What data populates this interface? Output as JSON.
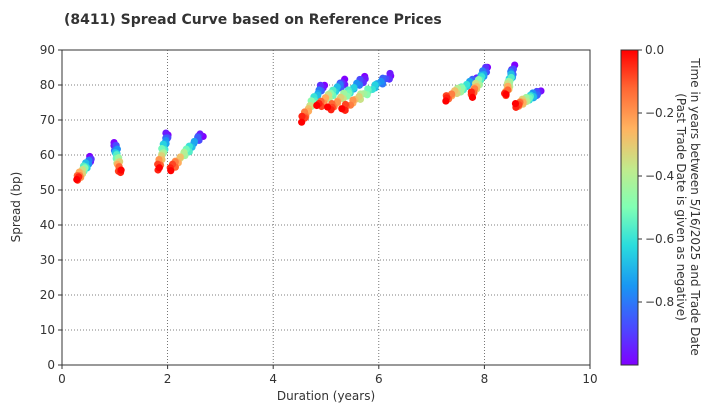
{
  "chart_data": {
    "type": "scatter",
    "title": "(8411)   Spread Curve based on Reference Prices",
    "xlabel": "Duration (years)",
    "ylabel": "Spread (bp)",
    "xlim": [
      0,
      10
    ],
    "ylim": [
      0,
      90
    ],
    "xticks": [
      0,
      2,
      4,
      6,
      8,
      10
    ],
    "yticks": [
      0,
      10,
      20,
      30,
      40,
      50,
      60,
      70,
      80,
      90
    ],
    "grid": true,
    "colorbar": {
      "label_line1": "Time in years between 5/16/2025 and Trade Date",
      "label_line2": "(Past Trade Date is given as negative)",
      "range": [
        -1.0,
        0.0
      ],
      "ticks": [
        0.0,
        -0.2,
        -0.4,
        -0.6,
        -0.8
      ],
      "tick_labels": [
        "0.0",
        "−0.2",
        "−0.4",
        "−0.6",
        "−0.8"
      ],
      "colormap": "rainbow"
    },
    "bonds": [
      {
        "d0": 0.28,
        "s0": 53,
        "d1": 0.55,
        "s1": 59
      },
      {
        "d0": 1.1,
        "s0": 55,
        "d1": 1.0,
        "s1": 63
      },
      {
        "d0": 1.82,
        "s0": 56,
        "d1": 2.0,
        "s1": 66
      },
      {
        "d0": 2.05,
        "s0": 56,
        "d1": 2.65,
        "s1": 66
      },
      {
        "d0": 4.55,
        "s0": 70,
        "d1": 4.95,
        "s1": 80
      },
      {
        "d0": 4.85,
        "s0": 74,
        "d1": 5.35,
        "s1": 81
      },
      {
        "d0": 5.05,
        "s0": 73,
        "d1": 5.75,
        "s1": 82
      },
      {
        "d0": 5.3,
        "s0": 73,
        "d1": 6.25,
        "s1": 83
      },
      {
        "d0": 7.25,
        "s0": 76,
        "d1": 7.9,
        "s1": 82
      },
      {
        "d0": 7.75,
        "s0": 77,
        "d1": 8.05,
        "s1": 85
      },
      {
        "d0": 8.4,
        "s0": 77,
        "d1": 8.55,
        "s1": 85
      },
      {
        "d0": 8.6,
        "s0": 74,
        "d1": 9.05,
        "s1": 78
      }
    ]
  }
}
